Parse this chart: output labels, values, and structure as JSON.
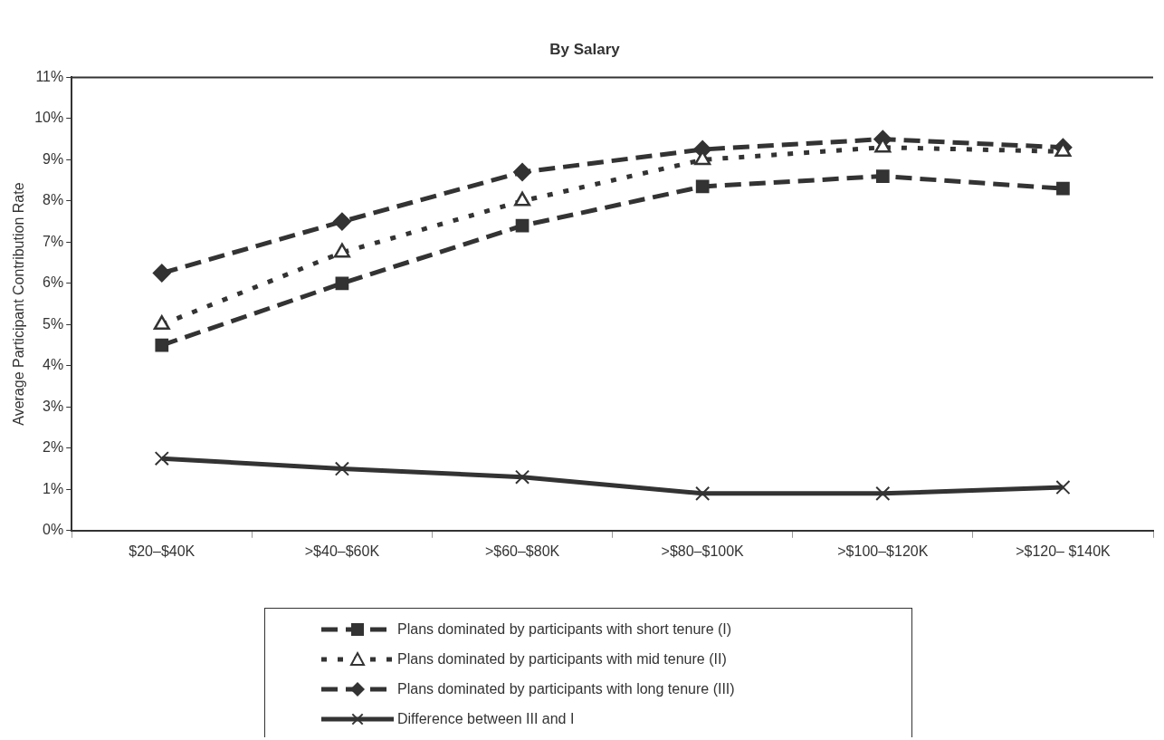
{
  "chart_data": {
    "type": "line",
    "title": "By Salary",
    "ylabel": "Average Participant Contribution Rate",
    "categories": [
      "$20–$40K",
      ">$40–$60K",
      ">$60–$80K",
      ">$80–$100K",
      ">$100–$120K",
      ">$120– $140K"
    ],
    "series": [
      {
        "name": "Plans dominated by participants with short tenure (I)",
        "color": "#333333",
        "marker": "square",
        "line_style": "dashed",
        "values": [
          4.5,
          6.0,
          7.4,
          8.35,
          8.6,
          8.3
        ]
      },
      {
        "name": "Plans dominated by participants with mid tenure (II)",
        "color": "#333333",
        "marker": "triangle",
        "line_style": "dotted",
        "values": [
          5.0,
          6.75,
          8.0,
          9.0,
          9.3,
          9.2
        ]
      },
      {
        "name": "Plans dominated by participants with long tenure (III)",
        "color": "#333333",
        "marker": "diamond",
        "line_style": "dashed",
        "values": [
          6.25,
          7.5,
          8.7,
          9.25,
          9.5,
          9.3
        ]
      },
      {
        "name": "Difference between III and I",
        "color": "#333333",
        "marker": "cross",
        "line_style": "solid",
        "values": [
          1.75,
          1.5,
          1.3,
          0.9,
          0.9,
          1.05
        ]
      }
    ],
    "ylim": [
      0,
      11
    ],
    "yticks": [
      {
        "value": 0,
        "label": "0%"
      },
      {
        "value": 1,
        "label": "1%"
      },
      {
        "value": 2,
        "label": "2%"
      },
      {
        "value": 3,
        "label": "3%"
      },
      {
        "value": 4,
        "label": "4%"
      },
      {
        "value": 5,
        "label": "5%"
      },
      {
        "value": 6,
        "label": "6%"
      },
      {
        "value": 7,
        "label": "7%"
      },
      {
        "value": 8,
        "label": "8%"
      },
      {
        "value": 9,
        "label": "9%"
      },
      {
        "value": 10,
        "label": "10%"
      },
      {
        "value": 11,
        "label": "11%"
      }
    ],
    "grid": false,
    "legend": "bottom"
  }
}
